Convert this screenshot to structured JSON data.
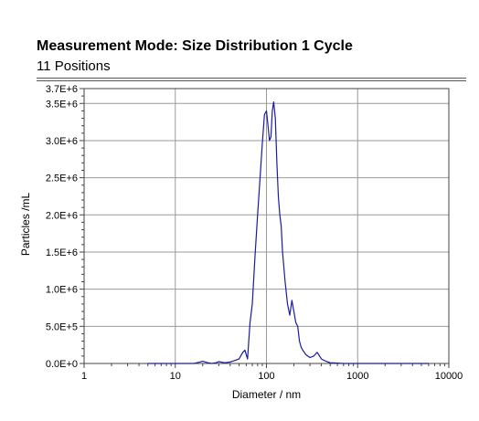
{
  "header": {
    "title": "Measurement Mode: Size Distribution 1 Cycle",
    "subtitle": "11 Positions"
  },
  "chart_data": {
    "type": "line",
    "xlabel": "Diameter / nm",
    "ylabel": "Particles /mL",
    "x_scale": "log",
    "xlim": [
      1,
      10000
    ],
    "ylim": [
      0,
      3700000
    ],
    "x_ticks": [
      1,
      10,
      100,
      1000,
      10000
    ],
    "x_tick_labels": [
      "1",
      "10",
      "100",
      "1000",
      "10000"
    ],
    "y_ticks": [
      0,
      500000,
      1000000,
      1500000,
      2000000,
      2500000,
      3000000,
      3500000,
      3700000
    ],
    "y_tick_labels": [
      "0.0E+0",
      "5.0E+5",
      "1.0E+6",
      "1.5E+6",
      "2.0E+6",
      "2.5E+6",
      "3.0E+6",
      "3.5E+6",
      "3.7E+6"
    ],
    "grid": true,
    "line_color": "#1a1aa6",
    "series": [
      {
        "x": [
          5,
          12,
          16,
          18,
          20,
          22,
          25,
          28,
          30,
          35,
          40,
          45,
          50,
          55,
          58,
          62,
          66,
          70,
          75,
          80,
          85,
          90,
          95,
          100,
          104,
          108,
          112,
          116,
          120,
          125,
          130,
          135,
          140,
          145,
          150,
          160,
          170,
          180,
          190,
          200,
          210,
          220,
          230,
          240,
          250,
          270,
          300,
          330,
          360,
          400,
          430,
          460,
          500,
          600,
          700,
          800,
          1000,
          2000,
          6000
        ],
        "y": [
          0,
          0,
          0,
          15000,
          30000,
          15000,
          0,
          10000,
          25000,
          10000,
          20000,
          40000,
          60000,
          150000,
          180000,
          60000,
          550000,
          800000,
          1450000,
          2000000,
          2500000,
          2950000,
          3350000,
          3400000,
          3200000,
          3000000,
          3050000,
          3400000,
          3520000,
          3300000,
          2700000,
          2250000,
          2000000,
          1850000,
          1500000,
          1100000,
          800000,
          650000,
          850000,
          700000,
          550000,
          500000,
          300000,
          220000,
          180000,
          120000,
          80000,
          100000,
          150000,
          60000,
          40000,
          25000,
          10000,
          5000,
          0,
          0,
          0,
          0,
          0
        ]
      }
    ]
  }
}
